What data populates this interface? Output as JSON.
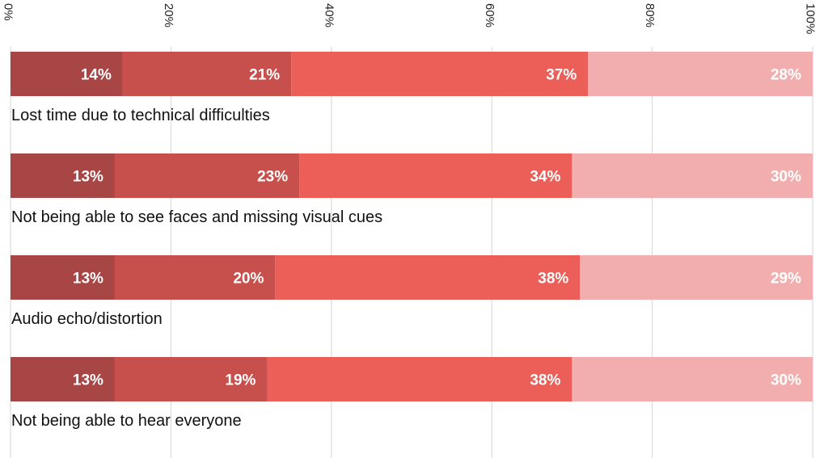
{
  "chart_data": {
    "type": "bar",
    "orientation": "horizontal",
    "stacked": true,
    "title": "",
    "xlabel": "",
    "ylabel": "",
    "xlim": [
      0,
      100
    ],
    "grid": true,
    "tick_values": [
      0,
      20,
      40,
      60,
      80,
      100
    ],
    "tick_labels": [
      "0%",
      "20%",
      "40%",
      "60%",
      "80%",
      "100%"
    ],
    "categories": [
      "Lost time due to technical difficulties",
      "Not being able to see faces and missing visual cues",
      "Audio echo/distortion",
      "Not being able to hear everyone"
    ],
    "series": [
      {
        "name": "",
        "color": "#a84545",
        "values": [
          14,
          13,
          13,
          13
        ],
        "labels": [
          "14%",
          "13%",
          "13%",
          "13%"
        ]
      },
      {
        "name": "",
        "color": "#c8504c",
        "values": [
          21,
          23,
          20,
          19
        ],
        "labels": [
          "21%",
          "23%",
          "20%",
          "19%"
        ]
      },
      {
        "name": "",
        "color": "#ec5f58",
        "values": [
          37,
          34,
          38,
          38
        ],
        "labels": [
          "37%",
          "34%",
          "38%",
          "38%"
        ]
      },
      {
        "name": "",
        "color": "#f2aeae",
        "values": [
          28,
          30,
          29,
          30
        ],
        "labels": [
          "28%",
          "30%",
          "29%",
          "30%"
        ]
      }
    ]
  }
}
